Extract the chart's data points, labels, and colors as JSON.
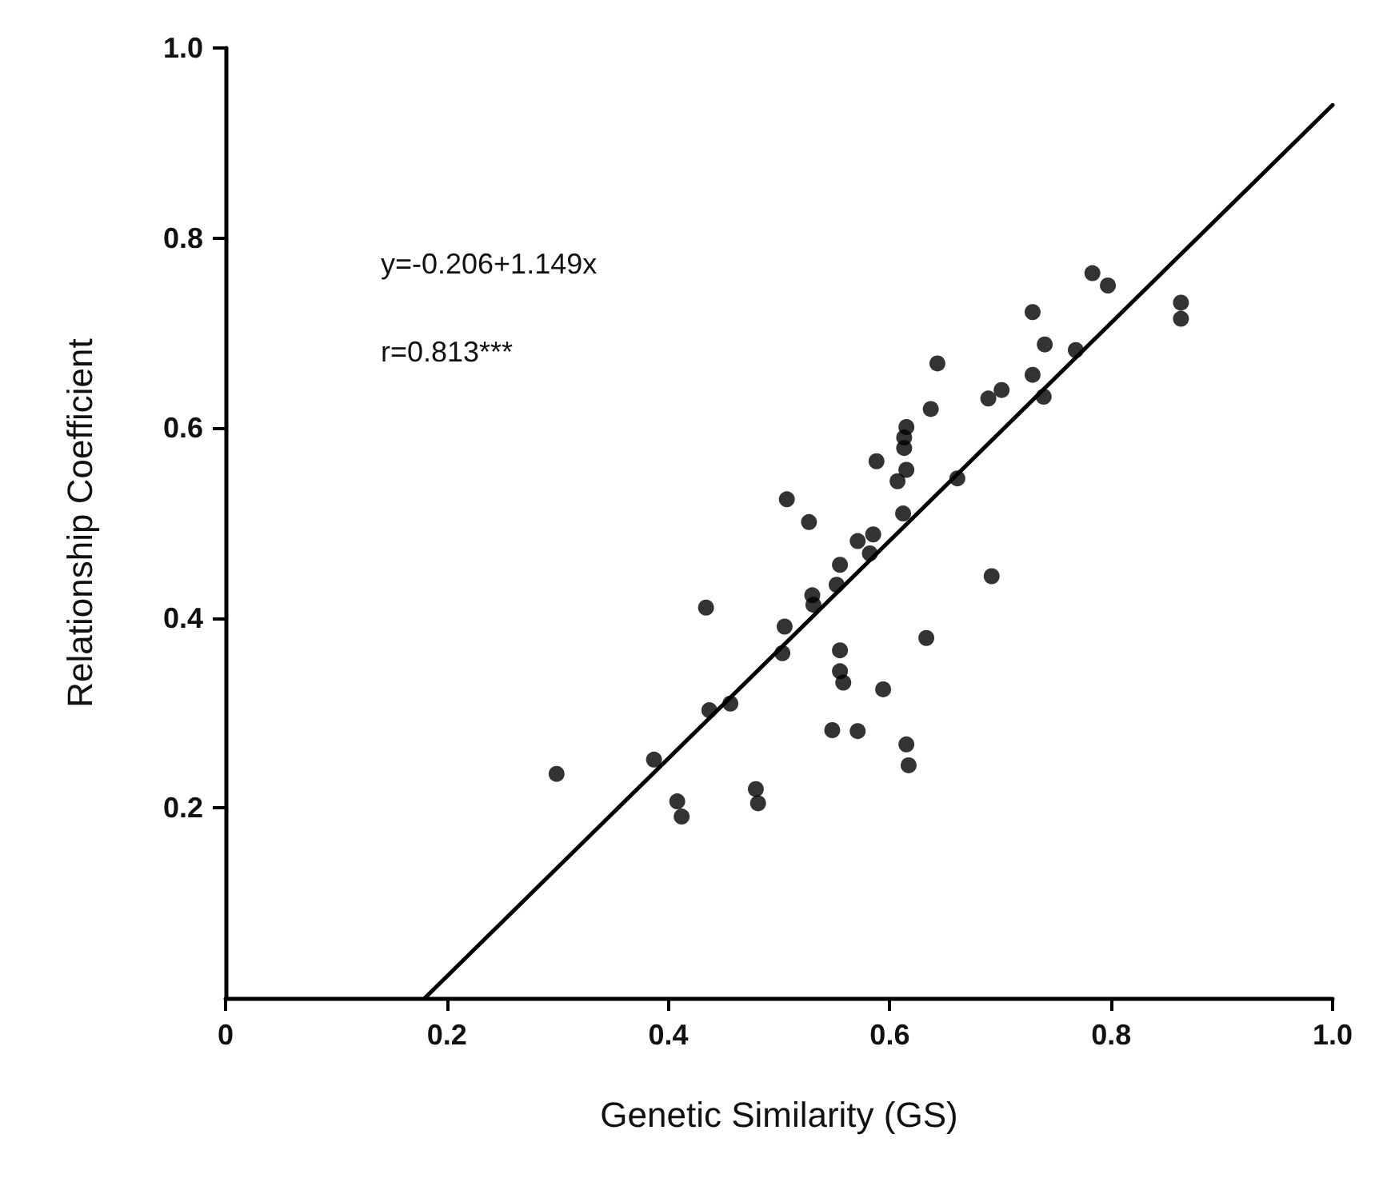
{
  "chart_data": {
    "type": "scatter",
    "xlabel": "Genetic Similarity (GS)",
    "ylabel": "Relationship Coefficient",
    "annotations": [
      "y=-0.206+1.149x",
      "r=0.813***"
    ],
    "xlim": [
      0,
      1
    ],
    "xticks": [
      0,
      0.2,
      0.4,
      0.6,
      0.8,
      {
        "value": 1,
        "label": "1.0"
      }
    ],
    "ylim": [
      0,
      1
    ],
    "yticks": [
      0.2,
      0.4,
      0.6,
      0.8,
      {
        "value": 1,
        "label": "1.0"
      }
    ],
    "grid": false,
    "series": [
      {
        "color": "#000000",
        "marker": "circle",
        "x": [
          0.299,
          0.387,
          0.408,
          0.412,
          0.434,
          0.437,
          0.456,
          0.479,
          0.481,
          0.507,
          0.505,
          0.503,
          0.527,
          0.53,
          0.531,
          0.548,
          0.555,
          0.555,
          0.558,
          0.555,
          0.552,
          0.571,
          0.585,
          0.582,
          0.571,
          0.588,
          0.594,
          0.607,
          0.615,
          0.615,
          0.613,
          0.613,
          0.612,
          0.615,
          0.617,
          0.633,
          0.637,
          0.643,
          0.661,
          0.689,
          0.701,
          0.692,
          0.729,
          0.729,
          0.74,
          0.739,
          0.768,
          0.783,
          0.797,
          0.863,
          0.863
        ],
        "values": [
          0.236,
          0.251,
          0.207,
          0.191,
          0.411,
          0.303,
          0.31,
          0.22,
          0.205,
          0.525,
          0.391,
          0.363,
          0.501,
          0.424,
          0.414,
          0.282,
          0.366,
          0.344,
          0.332,
          0.456,
          0.435,
          0.481,
          0.488,
          0.468,
          0.281,
          0.565,
          0.325,
          0.544,
          0.556,
          0.601,
          0.59,
          0.579,
          0.51,
          0.267,
          0.245,
          0.379,
          0.62,
          0.668,
          0.547,
          0.631,
          0.64,
          0.444,
          0.722,
          0.656,
          0.688,
          0.633,
          0.682,
          0.763,
          0.75,
          0.732,
          0.715
        ]
      },
      {
        "type": "line",
        "color": "#000000",
        "marker": "none",
        "line_style": "solid",
        "x": [
          0.18,
          1.0
        ],
        "values": [
          0.0,
          0.94
        ]
      }
    ]
  }
}
